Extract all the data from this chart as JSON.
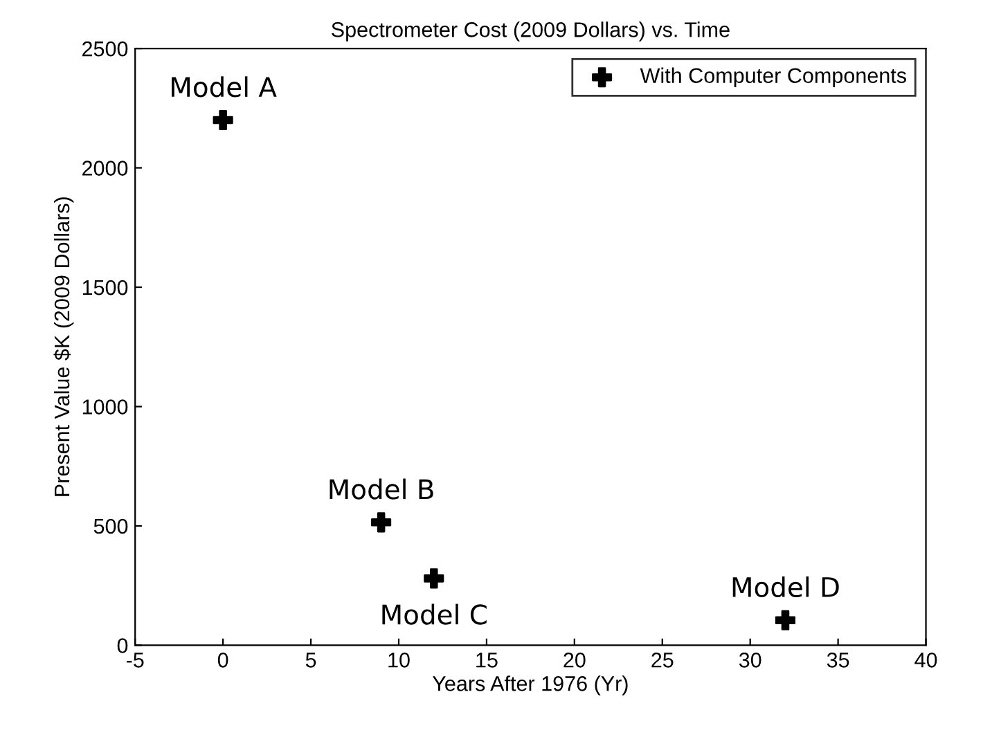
{
  "chart_data": {
    "type": "scatter",
    "title": "Spectrometer Cost (2009 Dollars) vs. Time",
    "xlabel": "Years After 1976 (Yr)",
    "ylabel": "Present Value $K (2009 Dollars)",
    "x": [
      0,
      9,
      12,
      32
    ],
    "series": [
      {
        "name": "With Computer Components",
        "color": "#000000",
        "values": [
          2200,
          515,
          280,
          105
        ]
      }
    ],
    "xlim": [
      -5,
      40
    ],
    "xticks": [
      -5,
      0,
      5,
      10,
      15,
      20,
      25,
      30,
      35,
      40
    ],
    "ylim": [
      0,
      2500
    ],
    "yticks": [
      0,
      500,
      1000,
      1500,
      2000,
      2500
    ],
    "annotations": [
      {
        "text": "Model A",
        "x": 0,
        "y": 2200
      },
      {
        "text": "Model B",
        "x": 9,
        "y": 515
      },
      {
        "text": "Model C",
        "x": 12,
        "y": 280
      },
      {
        "text": "Model D",
        "x": 32,
        "y": 105
      }
    ],
    "marker": "cross",
    "grid": false,
    "legend": "top right"
  }
}
